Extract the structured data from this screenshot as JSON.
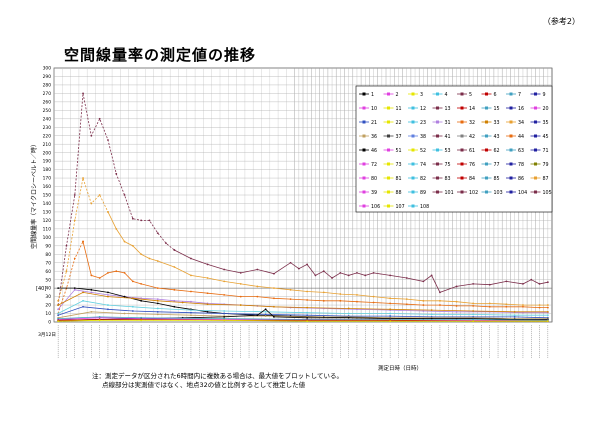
{
  "header": {
    "ref_label": "（参考2）",
    "title": "空間線量率の測定値の推移"
  },
  "notes": [
    "注：測定データが区分された6時間内に複数ある場合は、最大値をプロットしている。",
    "点線部分は実測値ではなく、地点32の値と比例するとして推定した値"
  ],
  "chart_data": {
    "type": "line",
    "ylabel": "空間線量率（マイクロシーベルト／時）",
    "xlabel": "測定日時（日時）",
    "ylim": [
      0,
      300
    ],
    "y_ticks": [
      0,
      10,
      20,
      30,
      40,
      50,
      60,
      70,
      80,
      90,
      100,
      110,
      120,
      130,
      140,
      150,
      160,
      170,
      180,
      190,
      200,
      210,
      220,
      230,
      240,
      250,
      260,
      270,
      280,
      290,
      300
    ],
    "y_marker_label": "[40]",
    "y_marker_value": 40,
    "first_date_label": "3月12日",
    "grid": true,
    "legend_position": "top-right",
    "x_count": 60,
    "series": [
      {
        "name": "5",
        "color": "#7b2d4a",
        "dash": true,
        "x": [
          0,
          1,
          2,
          3,
          4,
          5,
          6,
          7,
          8,
          9,
          10,
          11,
          12,
          13,
          14
        ],
        "values": [
          20,
          90,
          150,
          270,
          220,
          240,
          215,
          175,
          150,
          122,
          120,
          120,
          105,
          93,
          85
        ]
      },
      {
        "name": "5",
        "color": "#7b2d4a",
        "dash": false,
        "x": [
          14,
          16,
          18,
          20,
          22,
          24,
          26,
          28,
          29,
          30,
          31,
          32,
          33,
          34,
          35,
          36,
          37,
          38,
          40,
          42,
          44,
          45,
          46,
          48,
          50,
          52,
          54,
          56,
          57,
          58,
          59
        ],
        "values": [
          85,
          75,
          68,
          62,
          58,
          62,
          57,
          70,
          63,
          68,
          55,
          60,
          52,
          58,
          55,
          58,
          55,
          58,
          55,
          52,
          48,
          55,
          35,
          42,
          45,
          44,
          48,
          45,
          50,
          45,
          47
        ]
      },
      {
        "name": "3",
        "color": "#e8a030",
        "dash": true,
        "x": [
          0,
          1,
          2,
          3,
          4,
          5,
          6
        ],
        "values": [
          25,
          60,
          120,
          170,
          140,
          150,
          130
        ]
      },
      {
        "name": "3",
        "color": "#e8a030",
        "dash": false,
        "x": [
          6,
          7,
          8,
          9,
          10,
          11,
          12,
          14,
          16,
          18,
          20,
          22,
          24,
          26,
          28,
          30,
          32,
          34,
          36,
          38,
          40,
          42,
          44,
          46,
          48,
          50,
          52,
          54,
          56,
          58,
          59
        ],
        "values": [
          130,
          110,
          95,
          90,
          80,
          75,
          72,
          65,
          55,
          52,
          48,
          45,
          42,
          40,
          38,
          36,
          35,
          33,
          32,
          30,
          28,
          27,
          25,
          25,
          24,
          22,
          22,
          21,
          20,
          20,
          20
        ]
      },
      {
        "name": "32",
        "color": "#e86c10",
        "dash": true,
        "x": [
          0,
          1,
          2,
          3
        ],
        "values": [
          10,
          40,
          75,
          95
        ]
      },
      {
        "name": "32",
        "color": "#e86c10",
        "dash": false,
        "x": [
          3,
          4,
          5,
          6,
          7,
          8,
          9,
          10,
          12,
          14,
          16,
          18,
          20,
          22,
          24,
          26,
          28,
          30,
          32,
          34,
          36,
          38,
          40,
          42,
          44,
          46,
          48,
          50,
          52,
          54,
          56,
          58,
          59
        ],
        "values": [
          95,
          55,
          52,
          58,
          60,
          58,
          48,
          45,
          40,
          38,
          36,
          34,
          32,
          30,
          30,
          28,
          27,
          26,
          25,
          25,
          24,
          23,
          22,
          21,
          20,
          20,
          19,
          19,
          18,
          18,
          18,
          17,
          17
        ]
      },
      {
        "name": "31",
        "color": "#b080e0",
        "dash": false,
        "x": [
          0,
          2,
          4,
          6,
          8,
          10,
          12,
          14,
          16,
          18,
          20,
          24,
          28,
          32,
          36,
          40,
          44,
          48,
          52,
          56,
          59
        ],
        "values": [
          15,
          38,
          35,
          32,
          30,
          28,
          27,
          25,
          24,
          22,
          21,
          19,
          17,
          16,
          15,
          14,
          13,
          12,
          12,
          11,
          11
        ]
      },
      {
        "name": "1",
        "color": "#000000",
        "dash": false,
        "x": [
          0,
          2,
          4,
          6,
          8,
          10,
          12,
          14,
          16,
          18,
          20,
          24,
          28,
          32,
          36,
          40,
          44,
          48,
          52,
          56,
          59
        ],
        "values": [
          40,
          40,
          38,
          35,
          30,
          25,
          22,
          18,
          15,
          12,
          10,
          8,
          7,
          6,
          5,
          5,
          4,
          4,
          4,
          3,
          3
        ]
      },
      {
        "name": "33",
        "color": "#d08000",
        "dash": false,
        "x": [
          0,
          3,
          6,
          9,
          12,
          15,
          18,
          22,
          26,
          30,
          35,
          40,
          45,
          50,
          55,
          59
        ],
        "values": [
          20,
          35,
          30,
          28,
          25,
          23,
          21,
          20,
          18,
          17,
          16,
          15,
          14,
          13,
          12,
          12
        ]
      },
      {
        "name": "30",
        "color": "#60d0e0",
        "dash": false,
        "x": [
          0,
          3,
          6,
          9,
          12,
          16,
          20,
          25,
          30,
          35,
          40,
          45,
          50,
          55,
          59
        ],
        "values": [
          10,
          25,
          20,
          18,
          16,
          14,
          13,
          12,
          11,
          10,
          10,
          9,
          9,
          8,
          8
        ]
      },
      {
        "name": "21",
        "color": "#3050c0",
        "dash": false,
        "x": [
          0,
          3,
          6,
          9,
          12,
          16,
          20,
          25,
          30,
          35,
          40,
          45,
          50,
          55,
          59
        ],
        "values": [
          8,
          18,
          15,
          13,
          12,
          11,
          10,
          9,
          8,
          7,
          7,
          6,
          6,
          6,
          5
        ]
      },
      {
        "name": "36",
        "color": "#c0a060",
        "dash": false,
        "x": [
          0,
          4,
          8,
          12,
          16,
          20,
          25,
          30,
          35,
          40,
          45,
          50,
          55,
          59
        ],
        "values": [
          5,
          12,
          10,
          9,
          8,
          7,
          7,
          6,
          6,
          5,
          5,
          5,
          4,
          4
        ]
      },
      {
        "name": "62",
        "color": "#000000",
        "dash": false,
        "x": [
          0,
          10,
          15,
          20,
          24,
          25,
          26,
          30,
          35,
          40,
          45,
          50,
          55,
          59
        ],
        "values": [
          2,
          4,
          5,
          6,
          8,
          15,
          6,
          5,
          5,
          4,
          4,
          4,
          3,
          3
        ]
      },
      {
        "name": "10",
        "color": "#e040e0",
        "dash": false,
        "x": [
          0,
          5,
          10,
          20,
          30,
          40,
          50,
          59
        ],
        "values": [
          3,
          5,
          4,
          3,
          3,
          2,
          2,
          2
        ]
      },
      {
        "name": "7",
        "color": "#40a0c0",
        "dash": false,
        "x": [
          0,
          5,
          10,
          20,
          30,
          40,
          50,
          59
        ],
        "values": [
          4,
          6,
          5,
          4,
          3,
          3,
          3,
          2
        ]
      },
      {
        "name": "8",
        "color": "#c00000",
        "dash": false,
        "x": [
          0,
          5,
          10,
          20,
          30,
          40,
          50,
          59
        ],
        "values": [
          2,
          3,
          3,
          2,
          2,
          2,
          1,
          1
        ]
      },
      {
        "name": "88",
        "color": "#e6e600",
        "dash": false,
        "x": [
          0,
          5,
          10,
          20,
          30,
          40,
          50,
          59
        ],
        "values": [
          1,
          2,
          2,
          2,
          1,
          1,
          1,
          1
        ]
      }
    ],
    "legend": [
      {
        "label": "1",
        "color": "#000000"
      },
      {
        "label": "2",
        "color": "#e040e0"
      },
      {
        "label": "3",
        "color": "#e6e600"
      },
      {
        "label": "4",
        "color": "#40c0e0"
      },
      {
        "label": "5",
        "color": "#7b2d4a"
      },
      {
        "label": "6",
        "color": "#c00000"
      },
      {
        "label": "7",
        "color": "#40a0c0"
      },
      {
        "label": "9",
        "color": "#2020a0"
      },
      {
        "label": "10",
        "color": "#e040e0"
      },
      {
        "label": "11",
        "color": "#e6e600"
      },
      {
        "label": "12",
        "color": "#40c0e0"
      },
      {
        "label": "13",
        "color": "#7b2d4a"
      },
      {
        "label": "14",
        "color": "#c00000"
      },
      {
        "label": "15",
        "color": "#40a0c0"
      },
      {
        "label": "16",
        "color": "#2020a0"
      },
      {
        "label": "20",
        "color": "#e040e0"
      },
      {
        "label": "21",
        "color": "#3050c0"
      },
      {
        "label": "22",
        "color": "#e6e600"
      },
      {
        "label": "23",
        "color": "#40c0e0"
      },
      {
        "label": "31",
        "color": "#b080e0"
      },
      {
        "label": "32",
        "color": "#e86c10"
      },
      {
        "label": "33",
        "color": "#d08000"
      },
      {
        "label": "34",
        "color": "#e8a030"
      },
      {
        "label": "35",
        "color": "#2020a0"
      },
      {
        "label": "36",
        "color": "#c0a060"
      },
      {
        "label": "37",
        "color": "#404040"
      },
      {
        "label": "38",
        "color": "#6080e0"
      },
      {
        "label": "41",
        "color": "#7b2d4a"
      },
      {
        "label": "42",
        "color": "#808080"
      },
      {
        "label": "43",
        "color": "#40a0c0"
      },
      {
        "label": "44",
        "color": "#e86c10"
      },
      {
        "label": "45",
        "color": "#2020a0"
      },
      {
        "label": "46",
        "color": "#000000"
      },
      {
        "label": "51",
        "color": "#e040e0"
      },
      {
        "label": "52",
        "color": "#e6e600"
      },
      {
        "label": "53",
        "color": "#40c0e0"
      },
      {
        "label": "61",
        "color": "#7b2d4a"
      },
      {
        "label": "62",
        "color": "#c00000"
      },
      {
        "label": "63",
        "color": "#40a0c0"
      },
      {
        "label": "71",
        "color": "#2020a0"
      },
      {
        "label": "72",
        "color": "#e040e0"
      },
      {
        "label": "73",
        "color": "#e6e600"
      },
      {
        "label": "74",
        "color": "#40c0e0"
      },
      {
        "label": "75",
        "color": "#7b2d4a"
      },
      {
        "label": "76",
        "color": "#c00000"
      },
      {
        "label": "77",
        "color": "#40a0c0"
      },
      {
        "label": "78",
        "color": "#2020a0"
      },
      {
        "label": "79",
        "color": "#808000"
      },
      {
        "label": "80",
        "color": "#e040e0"
      },
      {
        "label": "81",
        "color": "#e6e600"
      },
      {
        "label": "82",
        "color": "#40c0e0"
      },
      {
        "label": "83",
        "color": "#7b2d4a"
      },
      {
        "label": "84",
        "color": "#c00000"
      },
      {
        "label": "85",
        "color": "#40a0c0"
      },
      {
        "label": "86",
        "color": "#2020a0"
      },
      {
        "label": "87",
        "color": "#e8a030"
      },
      {
        "label": "39",
        "color": "#e040e0"
      },
      {
        "label": "88",
        "color": "#e6e600"
      },
      {
        "label": "89",
        "color": "#40c0e0"
      },
      {
        "label": "101",
        "color": "#7b2d4a"
      },
      {
        "label": "102",
        "color": "#7b2d4a"
      },
      {
        "label": "103",
        "color": "#40a0c0"
      },
      {
        "label": "104",
        "color": "#2020a0"
      },
      {
        "label": "105",
        "color": "#7b2d4a"
      },
      {
        "label": "106",
        "color": "#e040e0"
      },
      {
        "label": "107",
        "color": "#e6e600"
      },
      {
        "label": "108",
        "color": "#40c0e0"
      }
    ]
  }
}
